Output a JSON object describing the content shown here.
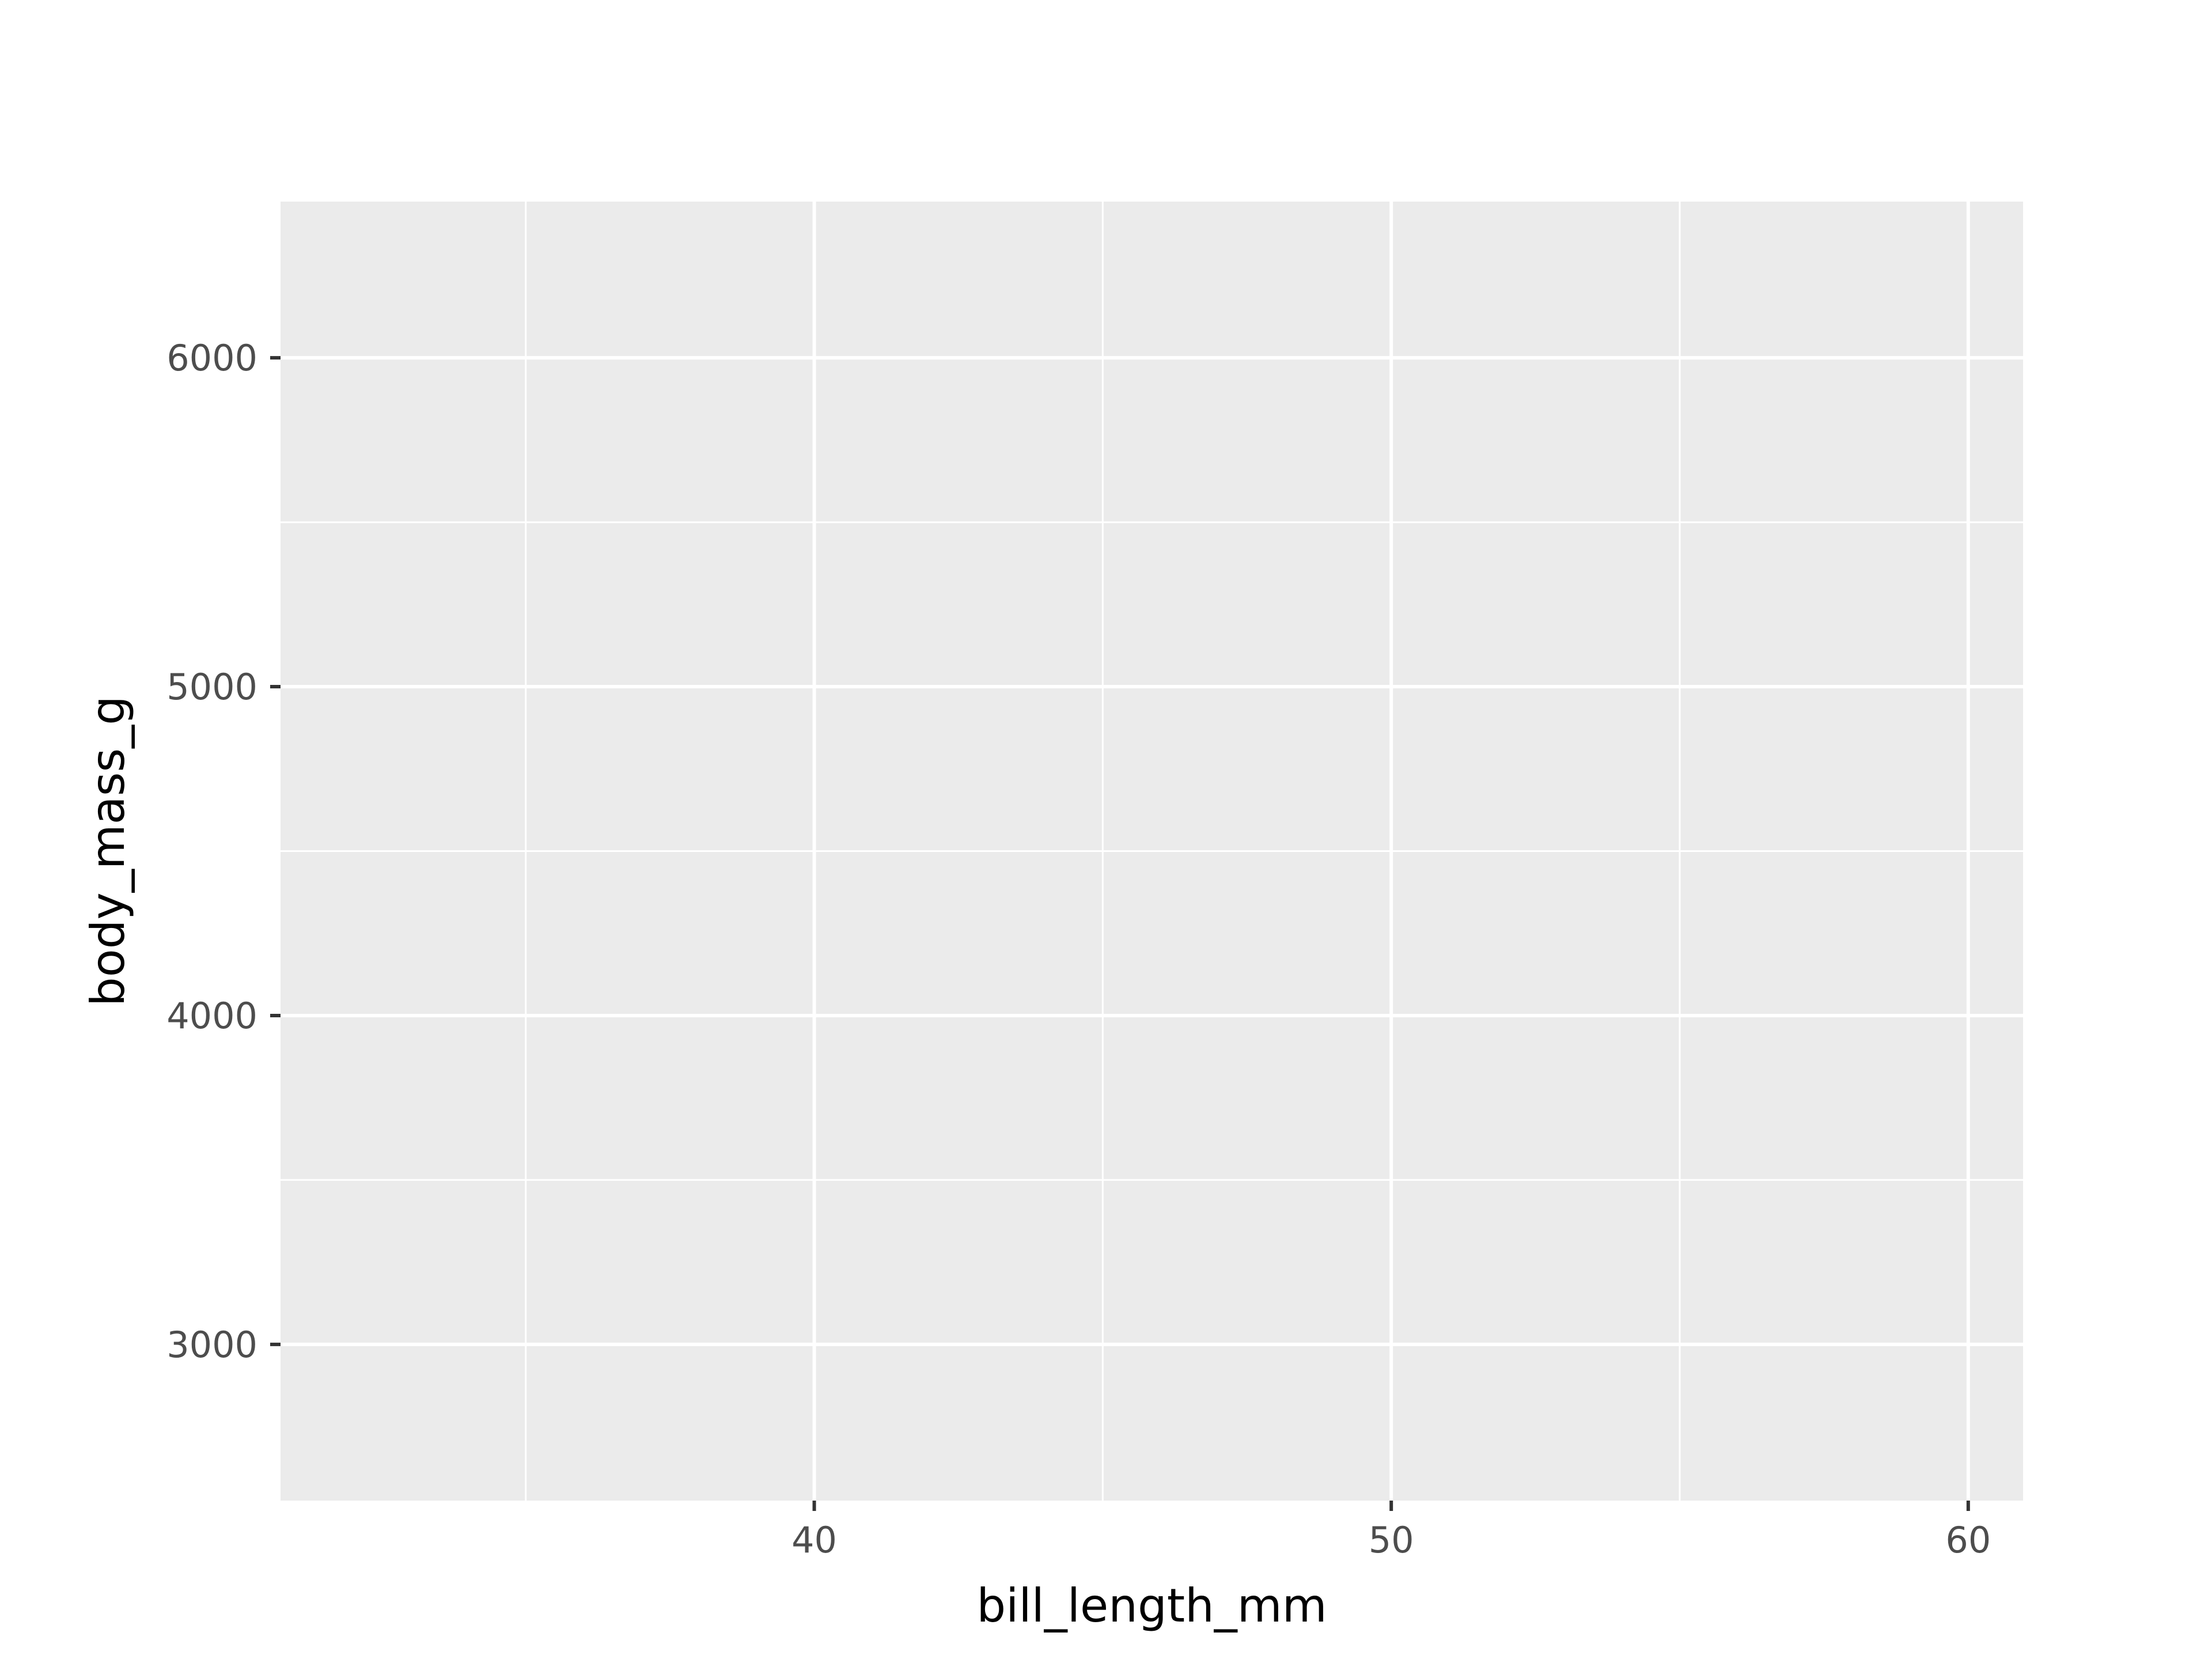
{
  "chart_data": {
    "type": "scatter",
    "title": "",
    "xlabel": "bill_length_mm",
    "ylabel": "body_mass_g",
    "xlim": [
      30.75,
      60.95
    ],
    "ylim": [
      2525,
      6475
    ],
    "x_ticks": [
      40,
      50,
      60
    ],
    "x_tick_labels": [
      "40",
      "50",
      "60"
    ],
    "x_minor_ticks": [
      35,
      45,
      55
    ],
    "y_ticks": [
      3000,
      4000,
      5000,
      6000
    ],
    "y_tick_labels": [
      "3000",
      "4000",
      "5000",
      "6000"
    ],
    "y_minor_ticks": [
      3500,
      4500,
      5500
    ],
    "grid": true,
    "legend": "none",
    "series": [],
    "colors": {
      "panel_background": "#ebebeb",
      "grid_line": "#ffffff",
      "tick_mark": "#333333",
      "tick_label": "#4d4d4d",
      "axis_title": "#000000"
    }
  }
}
